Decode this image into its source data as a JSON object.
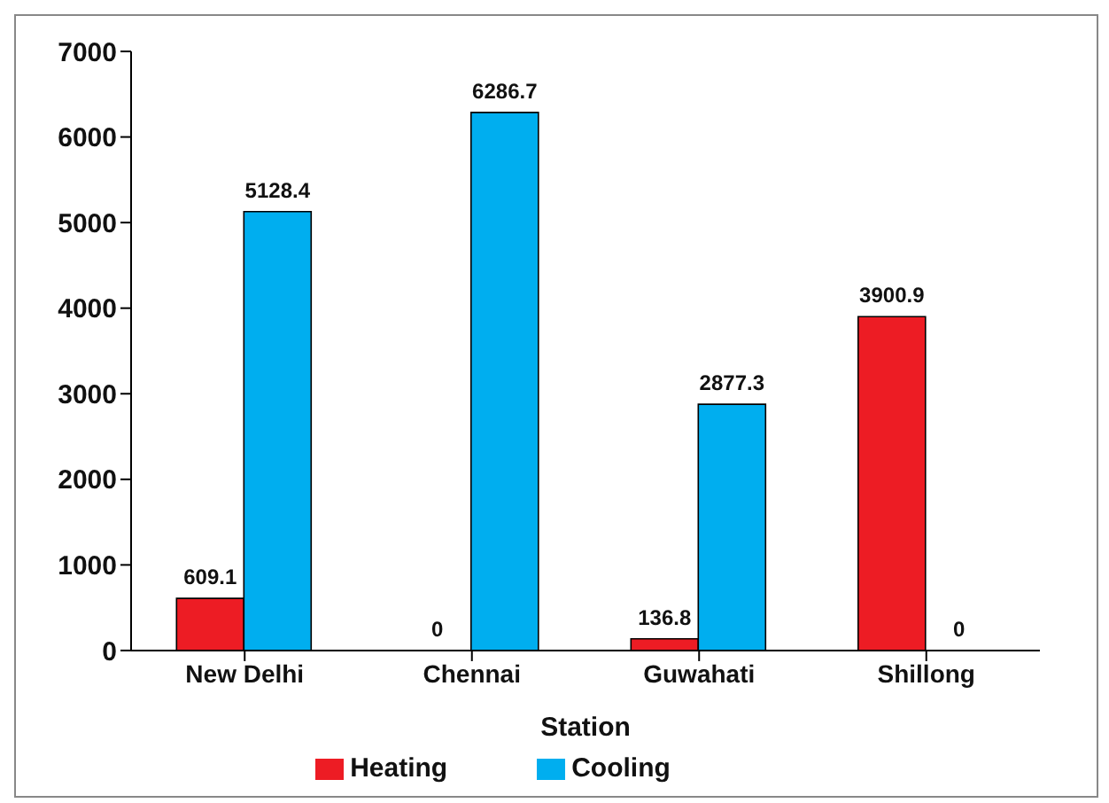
{
  "chart_data": {
    "type": "bar",
    "xlabel": "Station",
    "categories": [
      "New Delhi",
      "Chennai",
      "Guwahati",
      "Shillong"
    ],
    "series": [
      {
        "name": "Heating",
        "color": "#ed1c24",
        "values": [
          609.1,
          0,
          136.8,
          3900.9
        ]
      },
      {
        "name": "Cooling",
        "color": "#00aeef",
        "values": [
          5128.4,
          6286.7,
          2877.3,
          0
        ]
      }
    ],
    "ylim": [
      0,
      7000
    ],
    "yticks": [
      0,
      1000,
      2000,
      3000,
      4000,
      5000,
      6000,
      7000
    ],
    "grid": false,
    "legend": "bottom",
    "data_labels": true
  }
}
